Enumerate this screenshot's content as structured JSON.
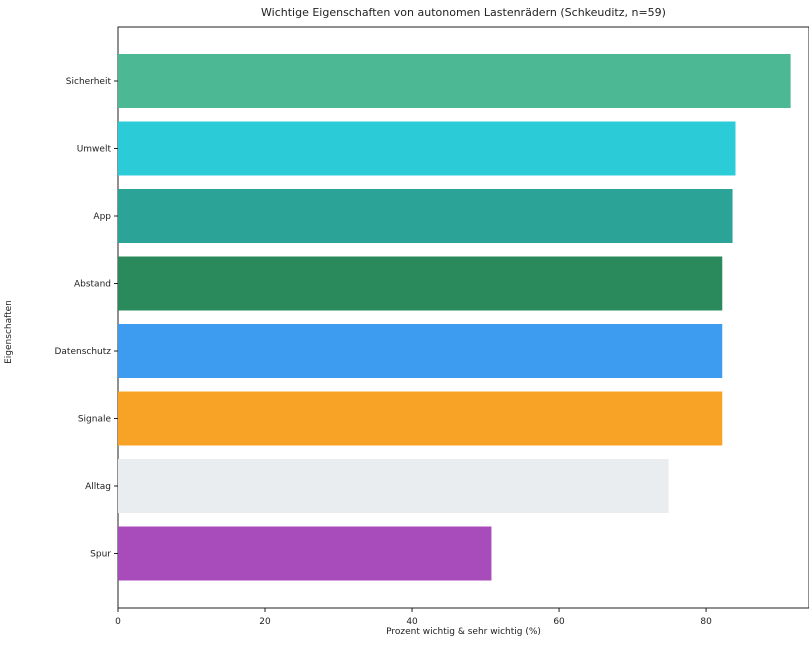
{
  "chart_data": {
    "type": "bar",
    "orientation": "horizontal",
    "title": "Wichtige Eigenschaften von autonomen Lastenrädern (Schkeuditz, n=59)",
    "xlabel": "Prozent wichtig & sehr wichtig (%)",
    "ylabel": "Eigenschaften",
    "categories": [
      "Sicherheit",
      "Umwelt",
      "App",
      "Abstand",
      "Datenschutz",
      "Signale",
      "Alltag",
      "Spur"
    ],
    "values": [
      91.5,
      84.0,
      83.6,
      82.2,
      82.2,
      82.2,
      74.9,
      50.8
    ],
    "colors": [
      "#4cb994",
      "#2ccbd8",
      "#2ba397",
      "#2b8a5b",
      "#3d9cf0",
      "#f8a326",
      "#e9edf0",
      "#a94cbb"
    ],
    "xlim": [
      0,
      94
    ],
    "xticks": [
      0,
      20,
      40,
      60,
      80
    ],
    "grid": false,
    "legend": "none"
  }
}
